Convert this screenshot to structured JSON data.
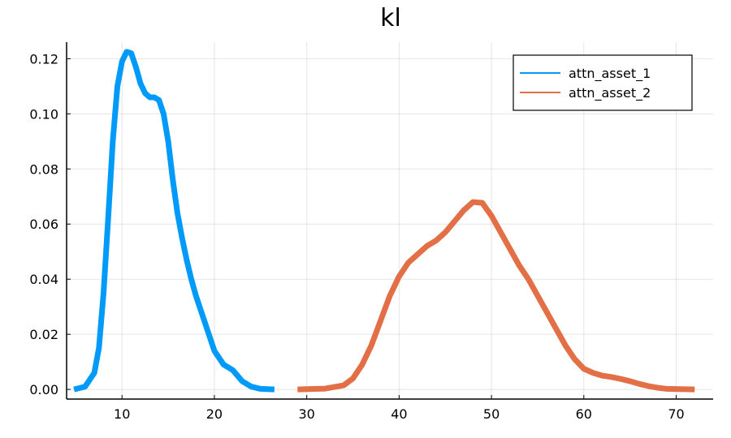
{
  "chart_data": {
    "type": "line",
    "title": "kl",
    "xlabel": "",
    "ylabel": "",
    "xlim": [
      4,
      74
    ],
    "ylim": [
      -0.0035,
      0.126
    ],
    "xticks": [
      10,
      20,
      30,
      40,
      50,
      60,
      70
    ],
    "yticks": [
      0.0,
      0.02,
      0.04,
      0.06,
      0.08,
      0.1,
      0.12
    ],
    "ytick_labels": [
      "0.00",
      "0.02",
      "0.04",
      "0.06",
      "0.08",
      "0.10",
      "0.12"
    ],
    "grid": true,
    "legend_position": "top-right",
    "series": [
      {
        "name": "attn_asset_1",
        "color": "#009af9",
        "x": [
          4.8,
          6,
          7,
          7.5,
          8,
          8.5,
          9,
          9.5,
          10,
          10.5,
          11,
          11.5,
          12,
          12.5,
          13,
          13.5,
          14,
          14.5,
          15,
          15.5,
          16,
          16.5,
          17,
          17.5,
          18,
          19,
          20,
          21,
          22,
          23,
          24,
          25,
          26.5
        ],
        "y": [
          0.0,
          0.001,
          0.006,
          0.015,
          0.035,
          0.062,
          0.09,
          0.11,
          0.119,
          0.1225,
          0.122,
          0.117,
          0.111,
          0.1075,
          0.106,
          0.106,
          0.105,
          0.1,
          0.09,
          0.076,
          0.064,
          0.055,
          0.047,
          0.04,
          0.034,
          0.024,
          0.014,
          0.009,
          0.007,
          0.003,
          0.001,
          0.0002,
          0.0
        ]
      },
      {
        "name": "attn_asset_2",
        "color": "#e26f46",
        "x": [
          29,
          32,
          34,
          35,
          36,
          37,
          38,
          39,
          40,
          41,
          42,
          43,
          44,
          45,
          46,
          47,
          48,
          49,
          50,
          51,
          52,
          53,
          54,
          55,
          56,
          57,
          58,
          59,
          60,
          61,
          62,
          63,
          64,
          65,
          66,
          67,
          68,
          69,
          72
        ],
        "y": [
          0.0,
          0.0003,
          0.0015,
          0.004,
          0.009,
          0.016,
          0.025,
          0.034,
          0.041,
          0.046,
          0.049,
          0.052,
          0.054,
          0.057,
          0.061,
          0.065,
          0.068,
          0.0677,
          0.063,
          0.057,
          0.051,
          0.045,
          0.04,
          0.034,
          0.028,
          0.022,
          0.016,
          0.011,
          0.0075,
          0.006,
          0.005,
          0.0045,
          0.0038,
          0.003,
          0.002,
          0.0012,
          0.0006,
          0.0002,
          0.0
        ]
      }
    ]
  }
}
